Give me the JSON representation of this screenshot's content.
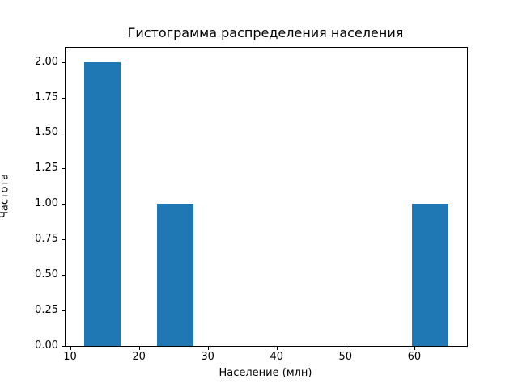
{
  "chart_data": {
    "type": "bar",
    "subtype": "histogram",
    "title": "Гистограмма распределения населения",
    "xlabel": "Население (млн)",
    "ylabel": "Частота",
    "bar_color": "#1f77b4",
    "text_color": "#000000",
    "background_color": "#ffffff",
    "grid": false,
    "legend": false,
    "xlim": [
      9.35,
      67.65
    ],
    "ylim": [
      0,
      2.1
    ],
    "x_ticks": [
      10,
      20,
      30,
      40,
      50,
      60
    ],
    "x_tick_labels": [
      "10",
      "20",
      "30",
      "40",
      "50",
      "60"
    ],
    "y_ticks": [
      0.0,
      0.25,
      0.5,
      0.75,
      1.0,
      1.25,
      1.5,
      1.75,
      2.0
    ],
    "y_tick_labels": [
      "0.00",
      "0.25",
      "0.50",
      "0.75",
      "1.00",
      "1.25",
      "1.50",
      "1.75",
      "2.00"
    ],
    "bins": [
      [
        12.0,
        17.3
      ],
      [
        17.3,
        22.6
      ],
      [
        22.6,
        27.9
      ],
      [
        27.9,
        33.2
      ],
      [
        33.2,
        38.5
      ],
      [
        38.5,
        43.8
      ],
      [
        43.8,
        49.1
      ],
      [
        49.1,
        54.4
      ],
      [
        54.4,
        59.7
      ],
      [
        59.7,
        65.0
      ]
    ],
    "counts": [
      2,
      0,
      1,
      0,
      0,
      0,
      0,
      0,
      0,
      1
    ]
  }
}
